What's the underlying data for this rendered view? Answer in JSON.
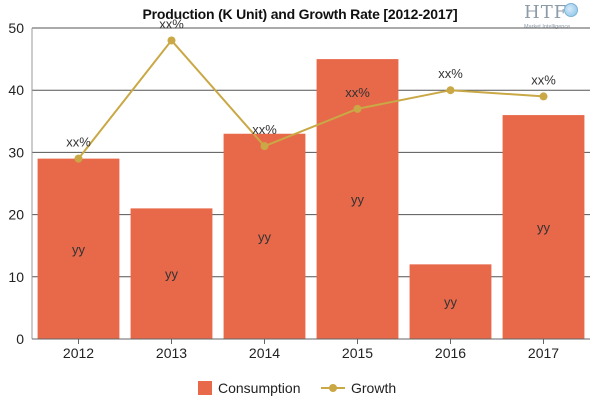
{
  "chart_data": {
    "type": "bar",
    "title": "Production (K Unit) and Growth Rate [2012-2017]",
    "categories": [
      "2012",
      "2013",
      "2014",
      "2015",
      "2016",
      "2017"
    ],
    "series": [
      {
        "name": "Consumption",
        "type": "bar",
        "color": "#e8684a",
        "values": [
          29,
          21,
          33,
          45,
          12,
          36
        ],
        "data_labels": [
          "yy",
          "yy",
          "yy",
          "yy",
          "yy",
          "yy"
        ]
      },
      {
        "name": "Growth",
        "type": "line",
        "color": "#c9a845",
        "values": [
          29,
          48,
          31,
          37,
          40,
          39
        ],
        "data_labels": [
          "xx%",
          "xx%",
          "xx%",
          "xx%",
          "xx%",
          "xx%"
        ]
      }
    ],
    "ylim": [
      0,
      50
    ],
    "yticks": [
      0,
      10,
      20,
      30,
      40,
      50
    ],
    "grid": true,
    "legend_position": "bottom"
  },
  "logo": {
    "mark": "HTF",
    "subtitle": "Market Intelligence"
  }
}
